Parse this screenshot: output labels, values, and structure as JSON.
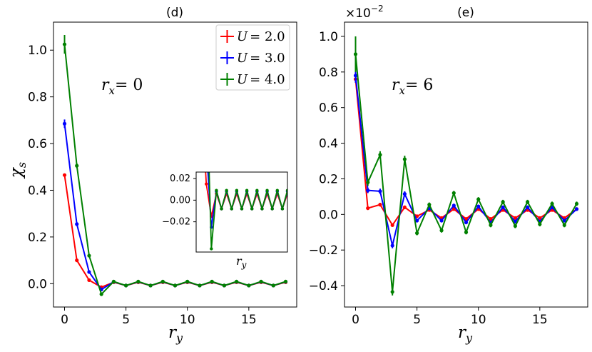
{
  "chart_data": [
    {
      "type": "line",
      "panel": "d",
      "title": "(d)",
      "annotation": {
        "prefix": "r",
        "sub": "x",
        "value": "= 0"
      },
      "xlabel": {
        "main": "r",
        "sub": "y"
      },
      "ylabel": {
        "main": "χ",
        "sub": "s"
      },
      "xlim": [
        -0.9,
        18.9
      ],
      "ylim": [
        -0.1,
        1.12
      ],
      "xticks": [
        0,
        5,
        10,
        15
      ],
      "yticks": [
        0.0,
        0.2,
        0.4,
        0.6,
        0.8,
        1.0
      ],
      "ytick_labels": [
        "0.0",
        "0.2",
        "0.4",
        "0.6",
        "0.8",
        "1.0"
      ],
      "x": [
        0,
        1,
        2,
        3,
        4,
        5,
        6,
        7,
        8,
        9,
        10,
        11,
        12,
        13,
        14,
        15,
        16,
        17,
        18
      ],
      "series": [
        {
          "name": "U = 2.0",
          "label_var": "U",
          "label_value": "= 2.0",
          "color": "#ff0000",
          "values": [
            0.465,
            0.1,
            0.015,
            -0.015,
            0.006,
            -0.008,
            0.006,
            -0.008,
            0.006,
            -0.008,
            0.006,
            -0.008,
            0.006,
            -0.008,
            0.006,
            -0.008,
            0.006,
            -0.008,
            0.006
          ],
          "errors": [
            0.005,
            0.004,
            0.002,
            0.002,
            0.001,
            0.001,
            0.001,
            0.001,
            0.001,
            0.001,
            0.001,
            0.001,
            0.001,
            0.001,
            0.001,
            0.001,
            0.001,
            0.001,
            0.001
          ]
        },
        {
          "name": "U = 3.0",
          "label_var": "U",
          "label_value": "= 3.0",
          "color": "#0000ff",
          "values": [
            0.685,
            0.255,
            0.05,
            -0.025,
            0.008,
            -0.008,
            0.008,
            -0.008,
            0.008,
            -0.008,
            0.008,
            -0.008,
            0.008,
            -0.008,
            0.008,
            -0.008,
            0.008,
            -0.008,
            0.008
          ],
          "errors": [
            0.018,
            0.008,
            0.004,
            0.003,
            0.002,
            0.001,
            0.001,
            0.001,
            0.001,
            0.001,
            0.001,
            0.001,
            0.001,
            0.001,
            0.001,
            0.001,
            0.001,
            0.001,
            0.001
          ]
        },
        {
          "name": "U = 4.0",
          "label_var": "U",
          "label_value": "= 4.0",
          "color": "#008000",
          "values": [
            1.025,
            0.505,
            0.12,
            -0.045,
            0.009,
            -0.008,
            0.009,
            -0.008,
            0.009,
            -0.008,
            0.009,
            -0.008,
            0.009,
            -0.008,
            0.009,
            -0.008,
            0.009,
            -0.008,
            0.009
          ],
          "errors": [
            0.04,
            0.01,
            0.005,
            0.004,
            0.002,
            0.001,
            0.001,
            0.001,
            0.001,
            0.001,
            0.001,
            0.001,
            0.001,
            0.001,
            0.001,
            0.001,
            0.001,
            0.001,
            0.001
          ]
        }
      ],
      "legend": "top-right",
      "inset": {
        "xlabel": {
          "main": "r",
          "sub": "y"
        },
        "xlim": [
          0,
          18
        ],
        "ylim": [
          -0.048,
          0.026
        ],
        "yticks": [
          -0.02,
          0.0,
          0.02
        ],
        "ytick_labels": [
          "−0.02",
          "0.00",
          "0.02"
        ],
        "placement": "lower-right"
      }
    },
    {
      "type": "line",
      "panel": "e",
      "title": "(e)",
      "scale_label": "×10",
      "scale_exp": "−2",
      "annotation": {
        "prefix": "r",
        "sub": "x",
        "value": "= 6"
      },
      "xlabel": {
        "main": "r",
        "sub": "y"
      },
      "xlim": [
        -0.9,
        18.9
      ],
      "ylim": [
        -0.52,
        1.08
      ],
      "xticks": [
        0,
        5,
        10,
        15
      ],
      "yticks": [
        -0.4,
        -0.2,
        0.0,
        0.2,
        0.4,
        0.6,
        0.8,
        1.0
      ],
      "ytick_labels": [
        "−0.4",
        "−0.2",
        "0.0",
        "0.2",
        "0.4",
        "0.6",
        "0.8",
        "1.0"
      ],
      "x": [
        0,
        1,
        2,
        3,
        4,
        5,
        6,
        7,
        8,
        9,
        10,
        11,
        12,
        13,
        14,
        15,
        16,
        17,
        18
      ],
      "series": [
        {
          "name": "U = 2.0",
          "color": "#ff0000",
          "values": [
            0.76,
            0.035,
            0.055,
            -0.06,
            0.04,
            -0.01,
            0.025,
            -0.02,
            0.03,
            -0.025,
            0.03,
            -0.025,
            0.025,
            -0.02,
            0.025,
            -0.02,
            0.025,
            -0.02,
            0.03
          ],
          "errors": [
            0.02,
            0.01,
            0.01,
            0.01,
            0.01,
            0.008,
            0.008,
            0.008,
            0.008,
            0.008,
            0.008,
            0.008,
            0.008,
            0.008,
            0.008,
            0.008,
            0.008,
            0.008,
            0.008
          ]
        },
        {
          "name": "U = 3.0",
          "color": "#0000ff",
          "values": [
            0.78,
            0.135,
            0.13,
            -0.175,
            0.115,
            -0.035,
            0.035,
            -0.035,
            0.05,
            -0.045,
            0.045,
            -0.045,
            0.04,
            -0.04,
            0.04,
            -0.04,
            0.04,
            -0.035,
            0.03
          ],
          "errors": [
            0.04,
            0.015,
            0.015,
            0.015,
            0.015,
            0.01,
            0.01,
            0.01,
            0.01,
            0.01,
            0.01,
            0.01,
            0.01,
            0.01,
            0.01,
            0.01,
            0.01,
            0.01,
            0.01
          ]
        },
        {
          "name": "U = 4.0",
          "color": "#008000",
          "values": [
            0.9,
            0.18,
            0.335,
            -0.435,
            0.31,
            -0.105,
            0.055,
            -0.09,
            0.12,
            -0.1,
            0.085,
            -0.06,
            0.07,
            -0.065,
            0.07,
            -0.055,
            0.06,
            -0.06,
            0.06
          ],
          "errors": [
            0.1,
            0.02,
            0.02,
            0.02,
            0.02,
            0.012,
            0.012,
            0.012,
            0.012,
            0.012,
            0.012,
            0.012,
            0.012,
            0.012,
            0.012,
            0.012,
            0.012,
            0.012,
            0.012
          ]
        }
      ]
    }
  ]
}
